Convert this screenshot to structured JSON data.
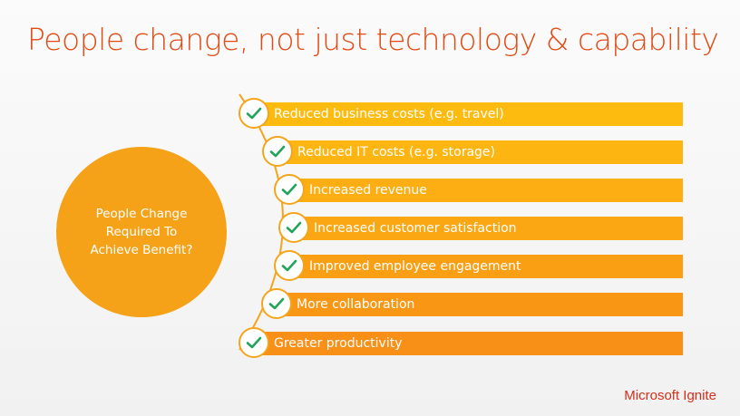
{
  "title": "People change, not just technology & capability",
  "circle_label": "People Change\nRequired To\nAchieve Benefit?",
  "items": [
    {
      "label": "Reduced business costs (e.g. travel)",
      "color": "#fdbb10"
    },
    {
      "label": "Reduced IT costs (e.g. storage)",
      "color": "#fdb511"
    },
    {
      "label": "Increased revenue",
      "color": "#fcae12"
    },
    {
      "label": "Increased customer satisfaction",
      "color": "#fba613"
    },
    {
      "label": "Improved employee engagement",
      "color": "#fa9f14"
    },
    {
      "label": "More collaboration",
      "color": "#f99715"
    },
    {
      "label": "Greater productivity",
      "color": "#f88f16"
    }
  ],
  "colors": {
    "title": "#e34a14",
    "circle": "#f6a219",
    "check": "#22a45a",
    "brand": "#d32f1a"
  },
  "brand": "Microsoft Ignite"
}
